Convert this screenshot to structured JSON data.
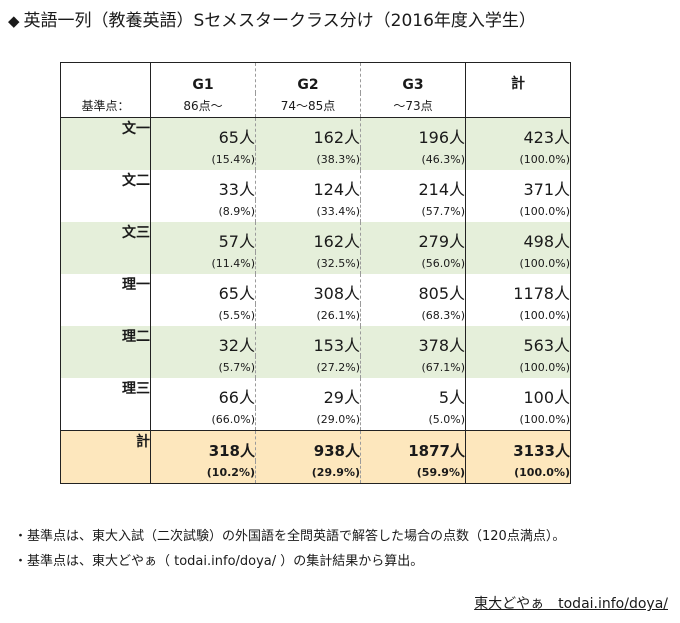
{
  "title": {
    "mark": "◆",
    "text": "英語一列（教養英語）Sセメスタークラス分け（2016年度入学生）"
  },
  "table": {
    "headers": [
      "G1",
      "G2",
      "G3",
      "計"
    ],
    "criteria_label": "基準点：",
    "criteria": [
      "86点～",
      "74～85点",
      "～73点",
      ""
    ],
    "rows": [
      {
        "name": "文一",
        "counts": [
          "65人",
          "162人",
          "196人",
          "423人"
        ],
        "pcts": [
          "(15.4%)",
          "(38.3%)",
          "(46.3%)",
          "(100.0%)"
        ]
      },
      {
        "name": "文二",
        "counts": [
          "33人",
          "124人",
          "214人",
          "371人"
        ],
        "pcts": [
          "(8.9%)",
          "(33.4%)",
          "(57.7%)",
          "(100.0%)"
        ]
      },
      {
        "name": "文三",
        "counts": [
          "57人",
          "162人",
          "279人",
          "498人"
        ],
        "pcts": [
          "(11.4%)",
          "(32.5%)",
          "(56.0%)",
          "(100.0%)"
        ]
      },
      {
        "name": "理一",
        "counts": [
          "65人",
          "308人",
          "805人",
          "1178人"
        ],
        "pcts": [
          "(5.5%)",
          "(26.1%)",
          "(68.3%)",
          "(100.0%)"
        ]
      },
      {
        "name": "理二",
        "counts": [
          "32人",
          "153人",
          "378人",
          "563人"
        ],
        "pcts": [
          "(5.7%)",
          "(27.2%)",
          "(67.1%)",
          "(100.0%)"
        ]
      },
      {
        "name": "理三",
        "counts": [
          "66人",
          "29人",
          "5人",
          "100人"
        ],
        "pcts": [
          "(66.0%)",
          "(29.0%)",
          "(5.0%)",
          "(100.0%)"
        ]
      }
    ],
    "total": {
      "name": "計",
      "counts": [
        "318人",
        "938人",
        "1877人",
        "3133人"
      ],
      "pcts": [
        "(10.2%)",
        "(29.9%)",
        "(59.9%)",
        "(100.0%)"
      ]
    }
  },
  "notes": [
    "・基準点は、東大入試（二次試験）の外国語を全問英語で解答した場合の点数（120点満点）。",
    "・基準点は、東大どやぁ（ todai.info/doya/ ）の集計結果から算出。"
  ],
  "credit": "東大どやぁ　todai.info/doya/",
  "colors": {
    "green_row": "#e5efda",
    "total_row": "#fde7bd",
    "border": "#222222"
  }
}
